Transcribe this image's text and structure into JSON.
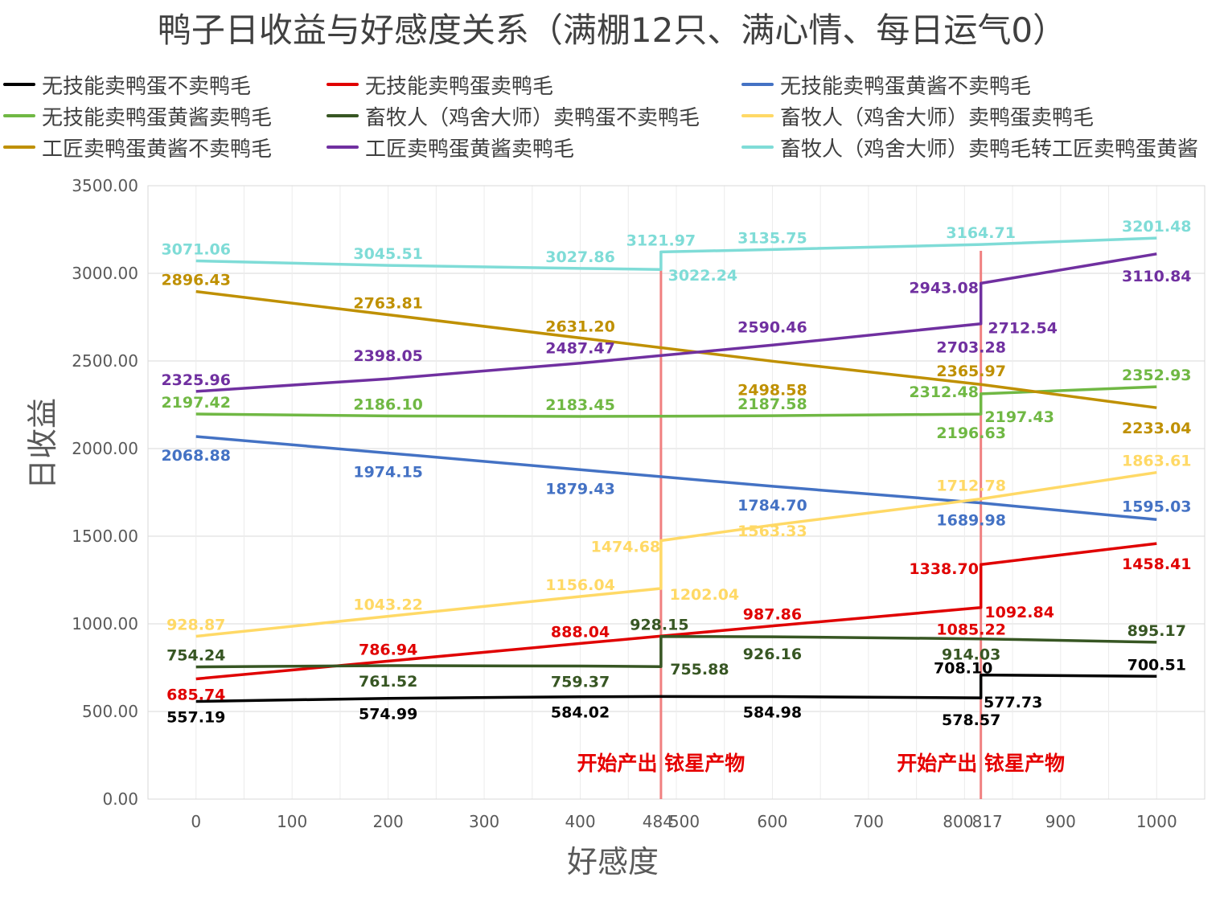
{
  "chart_data": {
    "type": "line",
    "title": "鸭子日收益与好感度关系（满棚12只、满心情、每日运气0）",
    "xlabel": "好感度",
    "ylabel": "日收益",
    "xlim": [
      -50,
      1050
    ],
    "ylim": [
      0,
      3500
    ],
    "x_ticks": [
      "0",
      "100",
      "200",
      "300",
      "400",
      "484",
      "500",
      "600",
      "700",
      "800",
      "817",
      "900",
      "1000"
    ],
    "y_ticks": [
      "0.00",
      "500.00",
      "1000.00",
      "1500.00",
      "2000.00",
      "2500.00",
      "3000.00",
      "3500.00"
    ],
    "grid": true,
    "legend_position": "top",
    "vlines": [
      {
        "x": 484,
        "label": "开始产出 铱星产物",
        "color": "#f08080"
      },
      {
        "x": 817,
        "label": "开始产出 铱星产物",
        "color": "#f08080"
      }
    ],
    "series": [
      {
        "name": "无技能卖鸭蛋不卖鸭毛",
        "color": "#000000",
        "x": [
          0,
          200,
          400,
          484,
          600,
          817,
          817,
          1000
        ],
        "y": [
          557.19,
          574.99,
          584.02,
          585.5,
          584.98,
          577.73,
          708.1,
          700.51
        ],
        "labels": [
          {
            "x": 0,
            "y": 557.19,
            "text": "557.19"
          },
          {
            "x": 200,
            "y": 574.99,
            "text": "574.99"
          },
          {
            "x": 400,
            "y": 584.02,
            "text": "584.02"
          },
          {
            "x": 600,
            "y": 584.98,
            "text": "584.98"
          },
          {
            "x": 817,
            "y": 578.57,
            "text": "578.57"
          },
          {
            "x": 817,
            "y": 577.73,
            "text": "577.73"
          },
          {
            "x": 817,
            "y": 708.1,
            "text": "708.10"
          },
          {
            "x": 1000,
            "y": 700.51,
            "text": "700.51"
          }
        ]
      },
      {
        "name": "无技能卖鸭蛋卖鸭毛",
        "color": "#e00000",
        "x": [
          0,
          200,
          400,
          484,
          600,
          817,
          817,
          1000
        ],
        "y": [
          685.74,
          786.94,
          888.04,
          930.0,
          987.86,
          1092.84,
          1338.7,
          1458.41
        ],
        "labels": [
          {
            "x": 0,
            "y": 685.74,
            "text": "685.74"
          },
          {
            "x": 200,
            "y": 786.94,
            "text": "786.94"
          },
          {
            "x": 400,
            "y": 888.04,
            "text": "888.04"
          },
          {
            "x": 600,
            "y": 987.86,
            "text": "987.86"
          },
          {
            "x": 817,
            "y": 1085.22,
            "text": "1085.22"
          },
          {
            "x": 817,
            "y": 1092.84,
            "text": "1092.84"
          },
          {
            "x": 817,
            "y": 1338.7,
            "text": "1338.70"
          },
          {
            "x": 1000,
            "y": 1458.41,
            "text": "1458.41"
          }
        ]
      },
      {
        "name": "无技能卖鸭蛋黄酱不卖鸭毛",
        "color": "#4472c4",
        "x": [
          0,
          200,
          400,
          600,
          817,
          1000
        ],
        "y": [
          2068.88,
          1974.15,
          1879.43,
          1784.7,
          1689.98,
          1595.03
        ],
        "labels": [
          {
            "x": 0,
            "y": 2068.88,
            "text": "2068.88"
          },
          {
            "x": 200,
            "y": 1974.15,
            "text": "1974.15"
          },
          {
            "x": 400,
            "y": 1879.43,
            "text": "1879.43"
          },
          {
            "x": 600,
            "y": 1784.7,
            "text": "1784.70"
          },
          {
            "x": 817,
            "y": 1689.98,
            "text": "1689.98"
          },
          {
            "x": 1000,
            "y": 1595.03,
            "text": "1595.03"
          }
        ]
      },
      {
        "name": "无技能卖鸭蛋黄酱卖鸭毛",
        "color": "#70b844",
        "x": [
          0,
          200,
          400,
          484,
          600,
          817,
          817,
          1000
        ],
        "y": [
          2197.42,
          2186.1,
          2183.45,
          2184.5,
          2187.58,
          2196.63,
          2312.48,
          2352.93
        ],
        "labels": [
          {
            "x": 0,
            "y": 2197.42,
            "text": "2197.42"
          },
          {
            "x": 200,
            "y": 2186.1,
            "text": "2186.10"
          },
          {
            "x": 400,
            "y": 2183.45,
            "text": "2183.45"
          },
          {
            "x": 600,
            "y": 2187.58,
            "text": "2187.58"
          },
          {
            "x": 817,
            "y": 2196.63,
            "text": "2196.63"
          },
          {
            "x": 817,
            "y": 2197.43,
            "text": "2197.43"
          },
          {
            "x": 817,
            "y": 2312.48,
            "text": "2312.48"
          },
          {
            "x": 1000,
            "y": 2352.93,
            "text": "2352.93"
          }
        ]
      },
      {
        "name": "畜牧人（鸡舍大师）卖鸭蛋不卖鸭毛",
        "color": "#375623",
        "x": [
          0,
          200,
          400,
          484,
          484,
          600,
          817,
          1000
        ],
        "y": [
          754.24,
          761.52,
          759.37,
          755.88,
          928.15,
          926.16,
          914.03,
          895.17
        ],
        "labels": [
          {
            "x": 0,
            "y": 754.24,
            "text": "754.24"
          },
          {
            "x": 200,
            "y": 761.52,
            "text": "761.52"
          },
          {
            "x": 400,
            "y": 759.37,
            "text": "759.37"
          },
          {
            "x": 484,
            "y": 755.88,
            "text": "755.88"
          },
          {
            "x": 484,
            "y": 928.15,
            "text": "928.15"
          },
          {
            "x": 600,
            "y": 926.16,
            "text": "926.16"
          },
          {
            "x": 817,
            "y": 914.03,
            "text": "914.03"
          },
          {
            "x": 1000,
            "y": 895.17,
            "text": "895.17"
          }
        ]
      },
      {
        "name": "畜牧人（鸡舍大师）卖鸭蛋卖鸭毛",
        "color": "#ffd966",
        "x": [
          0,
          200,
          400,
          484,
          484,
          600,
          817,
          1000
        ],
        "y": [
          928.87,
          1043.22,
          1156.04,
          1202.04,
          1474.68,
          1563.33,
          1712.78,
          1863.61
        ],
        "labels": [
          {
            "x": 0,
            "y": 928.87,
            "text": "928.87"
          },
          {
            "x": 200,
            "y": 1043.22,
            "text": "1043.22"
          },
          {
            "x": 400,
            "y": 1156.04,
            "text": "1156.04"
          },
          {
            "x": 484,
            "y": 1202.04,
            "text": "1202.04"
          },
          {
            "x": 484,
            "y": 1474.68,
            "text": "1474.68"
          },
          {
            "x": 600,
            "y": 1563.33,
            "text": "1563.33"
          },
          {
            "x": 817,
            "y": 1712.78,
            "text": "1712.78"
          },
          {
            "x": 1000,
            "y": 1863.61,
            "text": "1863.61"
          }
        ]
      },
      {
        "name": "工匠卖鸭蛋黄酱不卖鸭毛",
        "color": "#bf9000",
        "x": [
          0,
          200,
          400,
          600,
          817,
          1000
        ],
        "y": [
          2896.43,
          2763.81,
          2631.2,
          2498.58,
          2365.97,
          2233.04
        ],
        "labels": [
          {
            "x": 0,
            "y": 2896.43,
            "text": "2896.43"
          },
          {
            "x": 200,
            "y": 2763.81,
            "text": "2763.81"
          },
          {
            "x": 400,
            "y": 2631.2,
            "text": "2631.20"
          },
          {
            "x": 600,
            "y": 2498.58,
            "text": "2498.58"
          },
          {
            "x": 817,
            "y": 2365.97,
            "text": "2365.97"
          },
          {
            "x": 1000,
            "y": 2233.04,
            "text": "2233.04"
          }
        ]
      },
      {
        "name": "工匠卖鸭蛋黄酱卖鸭毛",
        "color": "#7030a0",
        "x": [
          0,
          200,
          400,
          600,
          817,
          817,
          1000
        ],
        "y": [
          2325.96,
          2398.05,
          2487.47,
          2590.46,
          2712.54,
          2943.08,
          3110.84
        ],
        "labels": [
          {
            "x": 0,
            "y": 2325.96,
            "text": "2325.96"
          },
          {
            "x": 200,
            "y": 2398.05,
            "text": "2398.05"
          },
          {
            "x": 400,
            "y": 2487.47,
            "text": "2487.47"
          },
          {
            "x": 600,
            "y": 2590.46,
            "text": "2590.46"
          },
          {
            "x": 817,
            "y": 2703.28,
            "text": "2703.28"
          },
          {
            "x": 817,
            "y": 2712.54,
            "text": "2712.54"
          },
          {
            "x": 817,
            "y": 2943.08,
            "text": "2943.08"
          },
          {
            "x": 1000,
            "y": 3110.84,
            "text": "3110.84"
          }
        ]
      },
      {
        "name": "畜牧人（鸡舍大师）卖鸭毛转工匠卖鸭蛋黄酱",
        "color": "#7fdcd7",
        "x": [
          0,
          200,
          400,
          484,
          484,
          600,
          817,
          1000
        ],
        "y": [
          3071.06,
          3045.51,
          3027.86,
          3022.24,
          3121.97,
          3135.75,
          3164.71,
          3201.48
        ],
        "labels": [
          {
            "x": 0,
            "y": 3071.06,
            "text": "3071.06"
          },
          {
            "x": 200,
            "y": 3045.51,
            "text": "3045.51"
          },
          {
            "x": 400,
            "y": 3027.86,
            "text": "3027.86"
          },
          {
            "x": 484,
            "y": 3022.24,
            "text": "3022.24"
          },
          {
            "x": 484,
            "y": 3121.97,
            "text": "3121.97"
          },
          {
            "x": 600,
            "y": 3135.75,
            "text": "3135.75"
          },
          {
            "x": 817,
            "y": 3164.71,
            "text": "3164.71"
          },
          {
            "x": 1000,
            "y": 3201.48,
            "text": "3201.48"
          }
        ]
      }
    ]
  }
}
